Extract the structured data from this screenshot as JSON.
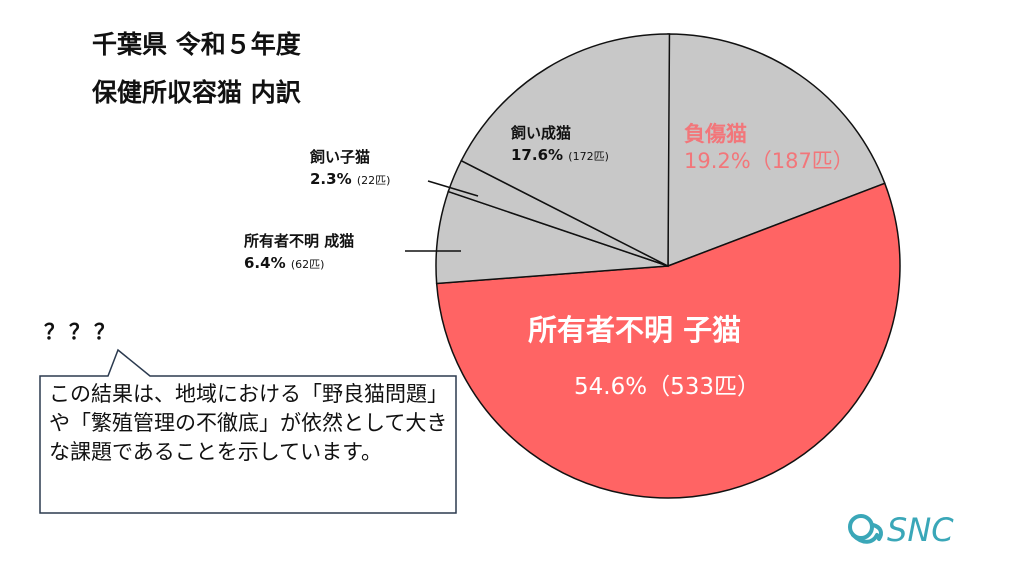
{
  "title": {
    "line1": "千葉県 令和５年度",
    "line2": "保健所収容猫 内訳"
  },
  "chart_data": {
    "type": "pie",
    "title": "千葉県 令和５年度 保健所収容猫 内訳",
    "start_angle_deg": 0,
    "direction": "clockwise",
    "slices": [
      {
        "name": "負傷猫",
        "percent": 19.2,
        "count": 187,
        "count_label": "（187匹）",
        "percent_label": "19.2%",
        "color": "#c8c8c8",
        "label_color": "#f2767a"
      },
      {
        "name": "所有者不明 子猫",
        "percent": 54.6,
        "count": 533,
        "count_label": "（533匹）",
        "percent_label": "54.6%",
        "color": "#ff6464",
        "label_color": "#ffffff"
      },
      {
        "name": "所有者不明 成猫",
        "percent": 6.4,
        "count": 62,
        "count_label": "(62匹)",
        "percent_label": "6.4%",
        "color": "#c8c8c8",
        "label_color": "#111111"
      },
      {
        "name": "飼い子猫",
        "percent": 2.3,
        "count": 22,
        "count_label": "(22匹)",
        "percent_label": "2.3%",
        "color": "#c8c8c8",
        "label_color": "#111111"
      },
      {
        "name": "飼い成猫",
        "percent": 17.6,
        "count": 172,
        "count_label": "(172匹)",
        "percent_label": "17.6%",
        "color": "#c8c8c8",
        "label_color": "#111111"
      }
    ]
  },
  "comment": {
    "question": "？？？",
    "text": "この結果は、地域における「野良猫問題」や「繁殖管理の不徹底」が依然として大きな課題であることを示しています。"
  },
  "logo": {
    "text": "SNC",
    "color": "#3aa7b8"
  }
}
